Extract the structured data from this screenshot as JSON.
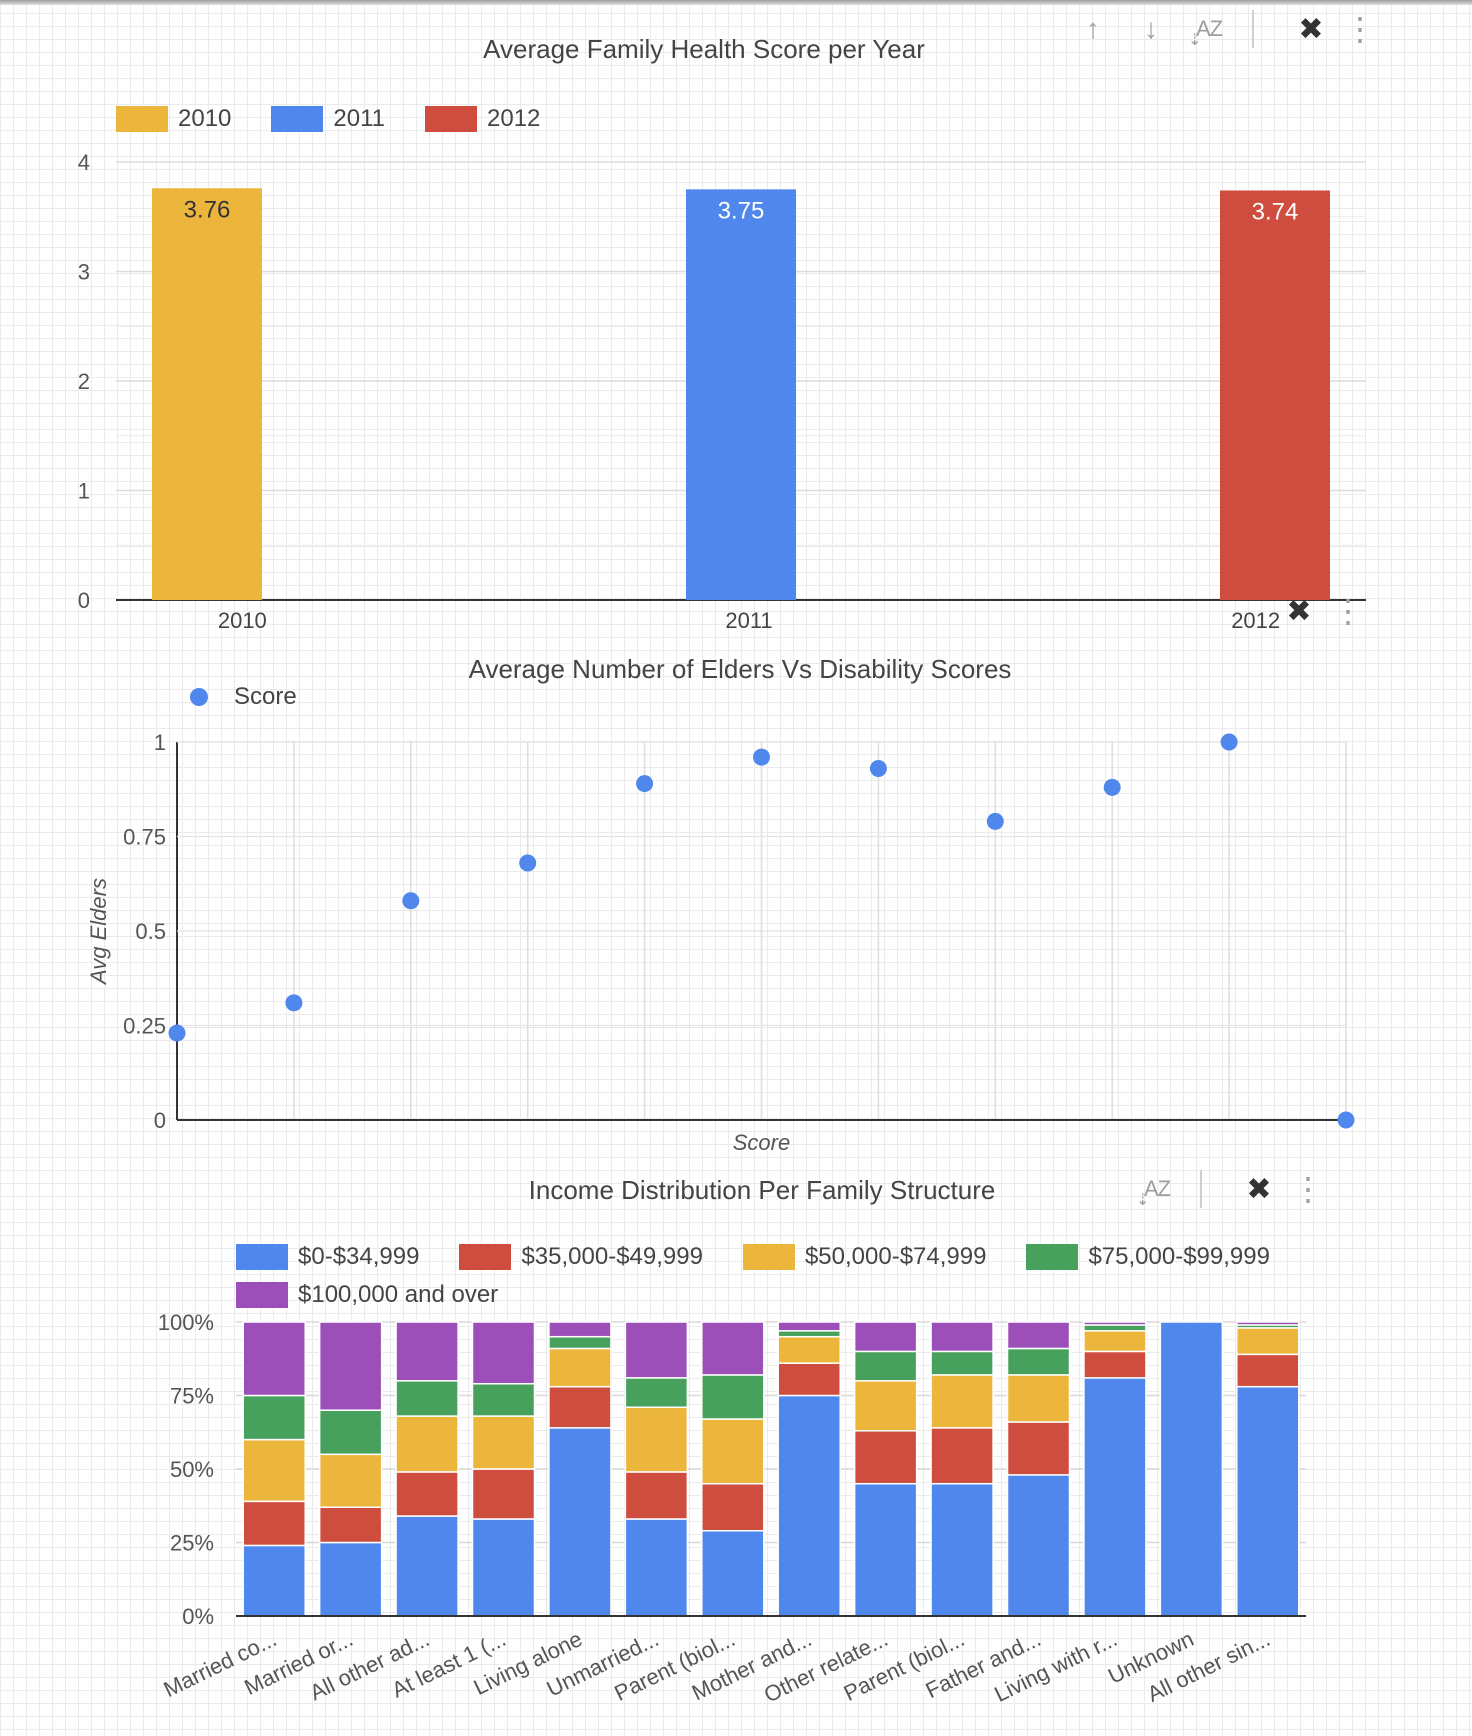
{
  "charts": {
    "health": {
      "title": "Average Family Health Score per Year",
      "legend": [
        {
          "name": "2010",
          "color": "#ecb63c"
        },
        {
          "name": "2011",
          "color": "#4f87ec"
        },
        {
          "name": "2012",
          "color": "#cf4d3f"
        }
      ],
      "toolbar": [
        {
          "name": "sort-ascending-icon",
          "glyph": "↑"
        },
        {
          "name": "sort-descending-icon",
          "glyph": "↓"
        },
        {
          "name": "sort-alpha-icon",
          "glyph": "AZ"
        },
        {
          "name": "pin-off-icon",
          "glyph": "✖"
        },
        {
          "name": "more-vert-icon",
          "glyph": "⋮"
        }
      ]
    },
    "elders": {
      "title": "Average Number of Elders Vs Disability Scores",
      "legend": [
        {
          "name": "Score",
          "color": "#4f87ec"
        }
      ],
      "toolbar": [
        {
          "name": "pin-off-icon",
          "glyph": "✖"
        },
        {
          "name": "more-vert-icon",
          "glyph": "⋮"
        }
      ]
    },
    "income": {
      "title": "Income Distribution Per Family Structure",
      "legend": [
        {
          "name": "$0-$34,999",
          "color": "#4f87ec"
        },
        {
          "name": "$35,000-$49,999",
          "color": "#cf4d3f"
        },
        {
          "name": "$50,000-$74,999",
          "color": "#ecb63c"
        },
        {
          "name": "$75,000-$99,999",
          "color": "#47a05c"
        },
        {
          "name": "$100,000 and over",
          "color": "#9c4fb9"
        }
      ],
      "toolbar": [
        {
          "name": "sort-alpha-icon",
          "glyph": "AZ"
        },
        {
          "name": "pin-off-icon",
          "glyph": "✖"
        },
        {
          "name": "more-vert-icon",
          "glyph": "⋮"
        }
      ]
    }
  },
  "chart_data": [
    {
      "type": "bar",
      "title": "Average Family Health Score per Year",
      "categories": [
        "2010",
        "2011",
        "2012"
      ],
      "series": [
        {
          "name": "2010",
          "values": [
            3.76,
            null,
            null
          ],
          "color": "#ecb63c"
        },
        {
          "name": "2011",
          "values": [
            null,
            3.75,
            null
          ],
          "color": "#4f87ec"
        },
        {
          "name": "2012",
          "values": [
            null,
            null,
            3.74
          ],
          "color": "#cf4d3f"
        }
      ],
      "data_labels": [
        "3.76",
        "3.75",
        "3.74"
      ],
      "yticks": [
        "0",
        "1",
        "2",
        "3",
        "4"
      ],
      "ylim": [
        0,
        4
      ],
      "grid": true,
      "legend": "top-left"
    },
    {
      "type": "scatter",
      "title": "Average Number of Elders Vs Disability Scores",
      "xlabel": "Score",
      "ylabel": "Avg Elders",
      "series": [
        {
          "name": "Score",
          "color": "#4f87ec",
          "x": [
            0,
            1,
            2,
            3,
            4,
            5,
            6,
            7,
            8,
            9,
            10
          ],
          "y": [
            0.23,
            0.31,
            0.58,
            0.68,
            0.89,
            0.96,
            0.93,
            0.79,
            0.88,
            1.0,
            0.0
          ]
        }
      ],
      "xlim": [
        0,
        10
      ],
      "ylim": [
        0,
        1
      ],
      "yticks": [
        "0",
        "0.25",
        "0.5",
        "0.75",
        "1"
      ],
      "grid": true,
      "legend": "top-left"
    },
    {
      "type": "bar",
      "stacked": true,
      "percent": true,
      "title": "Income Distribution Per Family Structure",
      "categories": [
        "Married co...",
        "Married or...",
        "All other ad...",
        "At least 1 (...",
        "Living alone",
        "Unmarried...",
        "Parent (biol...",
        "Mother and...",
        "Other relate...",
        "Parent (biol...",
        "Father and...",
        "Living with r...",
        "Unknown",
        "All other sin..."
      ],
      "series": [
        {
          "name": "$0-$34,999",
          "color": "#4f87ec",
          "values": [
            24,
            25,
            34,
            33,
            64,
            33,
            29,
            75,
            45,
            45,
            48,
            81,
            100,
            78
          ]
        },
        {
          "name": "$35,000-$49,999",
          "color": "#cf4d3f",
          "values": [
            15,
            12,
            15,
            17,
            14,
            16,
            16,
            11,
            18,
            19,
            18,
            9,
            0,
            11
          ]
        },
        {
          "name": "$50,000-$74,999",
          "color": "#ecb63c",
          "values": [
            21,
            18,
            19,
            18,
            13,
            22,
            22,
            9,
            17,
            18,
            16,
            7,
            0,
            9
          ]
        },
        {
          "name": "$75,000-$99,999",
          "color": "#47a05c",
          "values": [
            15,
            15,
            12,
            11,
            4,
            10,
            15,
            2,
            10,
            8,
            9,
            2,
            0,
            1
          ]
        },
        {
          "name": "$100,000 and over",
          "color": "#9c4fb9",
          "values": [
            25,
            30,
            20,
            21,
            5,
            19,
            18,
            3,
            10,
            10,
            9,
            1,
            0,
            1
          ]
        }
      ],
      "yticks": [
        "0%",
        "25%",
        "50%",
        "75%",
        "100%"
      ],
      "ylim": [
        0,
        100
      ],
      "grid": true,
      "legend": "top-left"
    }
  ]
}
